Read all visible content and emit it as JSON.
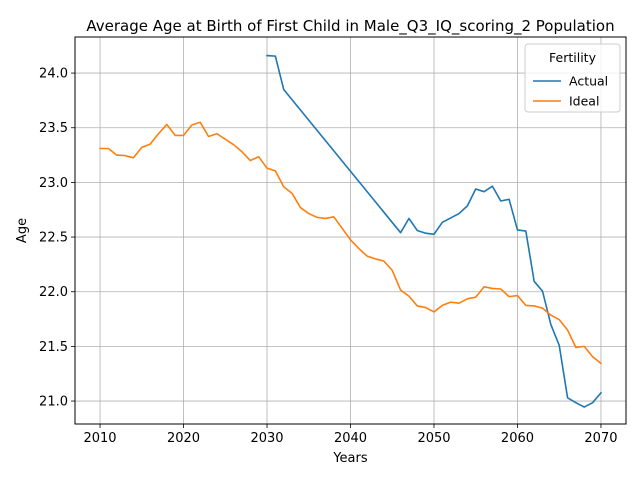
{
  "chart_data": {
    "type": "line",
    "title": "Average Age at Birth of First Child in Male_Q3_IQ_scoring_2 Population",
    "xlabel": "Years",
    "ylabel": "Age",
    "xlim": [
      2007,
      2073
    ],
    "ylim": [
      20.79,
      24.33
    ],
    "xticks": [
      2010,
      2020,
      2030,
      2040,
      2050,
      2060,
      2070
    ],
    "yticks": [
      21.0,
      21.5,
      22.0,
      22.5,
      23.0,
      23.5,
      24.0
    ],
    "ytick_labels": [
      "21.0",
      "21.5",
      "22.0",
      "22.5",
      "23.0",
      "23.5",
      "24.0"
    ],
    "grid": true,
    "legend": {
      "title": "Fertility",
      "placement": "top-right"
    },
    "series": [
      {
        "name": "Actual",
        "color": "#1f77b4",
        "x": [
          2030,
          2031,
          2032,
          2046,
          2047,
          2048,
          2049,
          2050,
          2051,
          2052,
          2053,
          2054,
          2055,
          2056,
          2057,
          2058,
          2059,
          2060,
          2061,
          2062,
          2063,
          2064,
          2065,
          2066,
          2067,
          2068,
          2069,
          2070
        ],
        "values": [
          24.16,
          24.155,
          23.85,
          22.54,
          22.67,
          22.56,
          22.535,
          22.525,
          22.635,
          22.675,
          22.715,
          22.785,
          22.94,
          22.915,
          22.965,
          22.83,
          22.845,
          22.565,
          22.555,
          22.095,
          22.005,
          21.7,
          21.51,
          21.03,
          20.985,
          20.945,
          20.985,
          21.075
        ]
      },
      {
        "name": "Ideal",
        "color": "#ff7f0e",
        "x": [
          2010,
          2011,
          2012,
          2013,
          2014,
          2015,
          2016,
          2017,
          2018,
          2019,
          2020,
          2021,
          2022,
          2023,
          2024,
          2025,
          2026,
          2027,
          2028,
          2029,
          2030,
          2031,
          2032,
          2033,
          2034,
          2035,
          2036,
          2037,
          2038,
          2039,
          2040,
          2041,
          2042,
          2043,
          2044,
          2045,
          2046,
          2047,
          2048,
          2049,
          2050,
          2051,
          2052,
          2053,
          2054,
          2055,
          2056,
          2057,
          2058,
          2059,
          2060,
          2061,
          2062,
          2063,
          2064,
          2065,
          2066,
          2067,
          2068,
          2069,
          2070
        ],
        "values": [
          23.31,
          23.31,
          23.25,
          23.245,
          23.225,
          23.32,
          23.35,
          23.445,
          23.53,
          23.43,
          23.43,
          23.525,
          23.55,
          23.42,
          23.445,
          23.395,
          23.345,
          23.28,
          23.2,
          23.235,
          23.13,
          23.105,
          22.96,
          22.9,
          22.77,
          22.715,
          22.68,
          22.67,
          22.685,
          22.58,
          22.475,
          22.395,
          22.325,
          22.3,
          22.28,
          22.195,
          22.015,
          21.96,
          21.87,
          21.855,
          21.815,
          21.875,
          21.905,
          21.895,
          21.935,
          21.95,
          22.045,
          22.03,
          22.025,
          21.955,
          21.965,
          21.875,
          21.87,
          21.85,
          21.785,
          21.745,
          21.65,
          21.49,
          21.5,
          21.405,
          21.345
        ]
      }
    ]
  }
}
